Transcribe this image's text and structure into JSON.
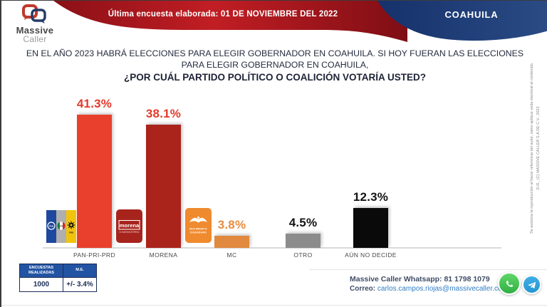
{
  "header": {
    "logo_line1": "Massive",
    "logo_line2": "Caller",
    "banner": "Última encuesta elaborada: 01 DE NOVIEMBRE DEL 2022",
    "region": "COAHUILA"
  },
  "title": {
    "line1": "EN EL AÑO 2023 HABRÁ ELECCIONES PARA ELEGIR GOBERNADOR EN COAHUILA. SI HOY FUERAN LAS ELECCIONES",
    "line2": "PARA ELEGIR GOBERNADOR EN COAHUILA,",
    "line3": "¿POR CUÁL PARTIDO POLÍTICO O COALICIÓN VOTARÍA USTED?"
  },
  "chart_data": {
    "type": "bar",
    "title": "¿POR CUÁL PARTIDO POLÍTICO O COALICIÓN VOTARÍA USTED?",
    "categories": [
      "PAN-PRI-PRD",
      "MORENA",
      "MC",
      "OTRO",
      "AÚN NO DECIDE"
    ],
    "values": [
      41.3,
      38.1,
      3.8,
      4.5,
      12.3
    ],
    "value_labels": [
      "41.3%",
      "38.1%",
      "3.8%",
      "4.5%",
      "12.3%"
    ],
    "bar_colors": [
      "#E8402D",
      "#AA241C",
      "#E1893F",
      "#8C8C8C",
      "#0A0A0A"
    ],
    "label_colors": [
      "#E23A2A",
      "#E23A2A",
      "#E78C3F",
      "#141414",
      "#141414"
    ],
    "xlabel": "",
    "ylabel": "",
    "ylim": [
      0,
      45
    ],
    "grid": false,
    "legend": false
  },
  "logos": {
    "pan": "PAN",
    "pri": "PRI",
    "prd": "PRD",
    "morena": "morena",
    "morena_tagline": "La esperanza de México",
    "mc_line1": "MOVIMIENTO",
    "mc_line2": "CIUDADANO"
  },
  "stats_table": {
    "headers": [
      "ENCUESTAS REALIZADAS",
      "M.E."
    ],
    "values": [
      "1000",
      "+/- 3.4%"
    ]
  },
  "contact": {
    "whatsapp_line": "Massive Caller Whatsapp: 81 1798 1079",
    "email_label": "Correo:",
    "email": "carlos.campos.riojas@massivecaller.com"
  },
  "side_note": {
    "disclaimer": "Se autoriza la reproducción al hacer referencia del autor, salvo aplique veda electoral al contenido.",
    "copyright": "D.R., (C) MASSIVE CALLER S.A DE C.V., 2022"
  },
  "colors": {
    "banner_red": "#C11E24",
    "banner_red_dark": "#8A1016",
    "region_blue": "#1C3A70",
    "table_header_blue": "#2254A3",
    "accent_red": "#E23A2A",
    "mc_orange": "#EF8A2E",
    "morena_red": "#A7241D",
    "pan_blue": "#1E489D",
    "prd_yellow": "#F2C30D"
  }
}
